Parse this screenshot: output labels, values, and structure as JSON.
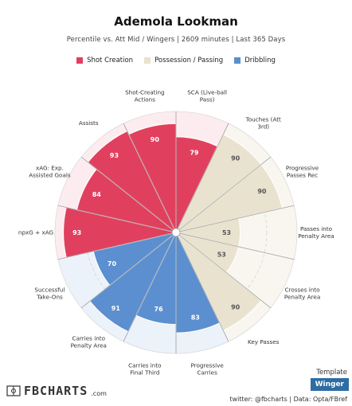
{
  "header": {
    "title": "Ademola Lookman",
    "subtitle": "Percentile vs. Att Mid / Wingers | 2609 minutes | Last 365 Days"
  },
  "legend": [
    {
      "label": "Shot Creation",
      "color": "#e0405e"
    },
    {
      "label": "Possession / Passing",
      "color": "#e8e2cf"
    },
    {
      "label": "Dribbling",
      "color": "#5b8fcf"
    }
  ],
  "chart_data": {
    "type": "polar-bar",
    "scale": [
      0,
      100
    ],
    "categories": [
      {
        "label": "SCA (Live-ball Pass)",
        "value": 79,
        "group": "Shot Creation"
      },
      {
        "label": "Touches (Att 3rd)",
        "value": 90,
        "group": "Possession / Passing"
      },
      {
        "label": "Progressive Passes Rec",
        "value": 90,
        "group": "Possession / Passing"
      },
      {
        "label": "Passes into Penalty Area",
        "value": 53,
        "group": "Possession / Passing"
      },
      {
        "label": "Crosses into Penalty Area",
        "value": 53,
        "group": "Possession / Passing"
      },
      {
        "label": "Key Passes",
        "value": 90,
        "group": "Possession / Passing"
      },
      {
        "label": "Progressive Carries",
        "value": 83,
        "group": "Dribbling"
      },
      {
        "label": "Carries into Final Third",
        "value": 76,
        "group": "Dribbling"
      },
      {
        "label": "Carries into Penalty Area",
        "value": 91,
        "group": "Dribbling"
      },
      {
        "label": "Successful Take-Ons",
        "value": 70,
        "group": "Dribbling"
      },
      {
        "label": "npxG + xAG",
        "value": 93,
        "group": "Shot Creation"
      },
      {
        "label": "xAG: Exp. Assisted Goals",
        "value": 84,
        "group": "Shot Creation"
      },
      {
        "label": "Assists",
        "value": 93,
        "group": "Shot Creation"
      },
      {
        "label": "Shot-Creating Actions",
        "value": 90,
        "group": "Shot Creation"
      }
    ],
    "group_colors": {
      "Shot Creation": "#e0405e",
      "Possession / Passing": "#e8e2cf",
      "Dribbling": "#5b8fcf"
    },
    "background_colors": {
      "Shot Creation": "#fdecef",
      "Possession / Passing": "#f8f6ef",
      "Dribbling": "#ecf2fa"
    }
  },
  "footer": {
    "logo": "FBCHARTS",
    "logo_suffix": ".com",
    "credit": "twitter: @fbcharts | Data: Opta/FBref",
    "template_label": "Template",
    "template_value": "Winger"
  }
}
